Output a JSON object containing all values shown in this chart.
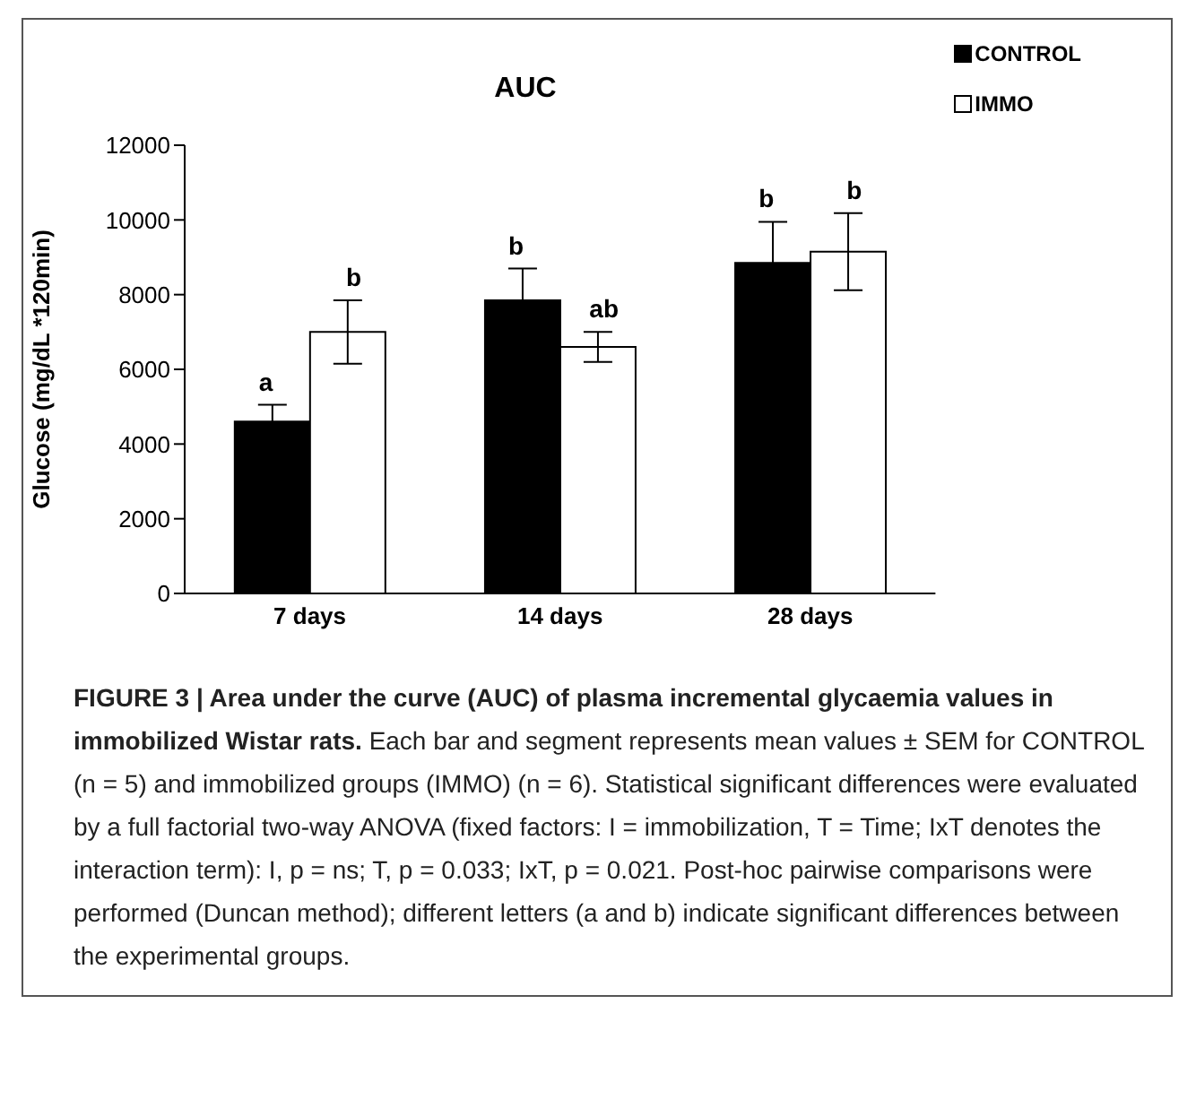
{
  "chart_data": {
    "type": "bar",
    "title": "AUC",
    "ylabel": "Glucose (mg/dL *120min)",
    "categories": [
      "7 days",
      "14 days",
      "28 days"
    ],
    "series": [
      {
        "name": "CONTROL",
        "color": "#000000",
        "values": [
          4600,
          7850,
          8850
        ],
        "errors": [
          450,
          850,
          1100
        ]
      },
      {
        "name": "IMMO",
        "color": "#ffffff",
        "values": [
          7000,
          6600,
          9150
        ],
        "errors": [
          850,
          400,
          1030
        ]
      }
    ],
    "ylim": [
      0,
      12000
    ],
    "yticks": [
      0,
      2000,
      4000,
      6000,
      8000,
      10000,
      12000
    ],
    "grid": false,
    "legend": "top right",
    "annotations": [
      {
        "text": "a",
        "x": "7 days",
        "y": 4600
      },
      {
        "text": "b",
        "x": "7 days",
        "y": 7000
      },
      {
        "text": "b",
        "x": "14 days",
        "y": 7850
      },
      {
        "text": "ab",
        "x": "14 days",
        "y": 6600
      },
      {
        "text": "b",
        "x": "28 days",
        "y": 8850
      },
      {
        "text": "b",
        "x": "28 days",
        "y": 9150
      },
      "FIGURE 3 | Area under the curve (AUC) of plasma incremental glycaemia values in immobilized Wistar rats.",
      "Each bar and segment represents mean values ± SEM for CONTROL (n = 5) and immobilized groups (IMMO) (n = 6). Statistical significant differences were evaluated by a full factorial two-way ANOVA (fixed factors: I = immobilization, T = Time; IxT denotes the interaction term): I, p = ns; T, p = 0.033; IxT, p = 0.021. Post-hoc pairwise comparisons were performed (Duncan method); different letters (a and b) indicate significant differences between the experimental groups."
    ]
  }
}
